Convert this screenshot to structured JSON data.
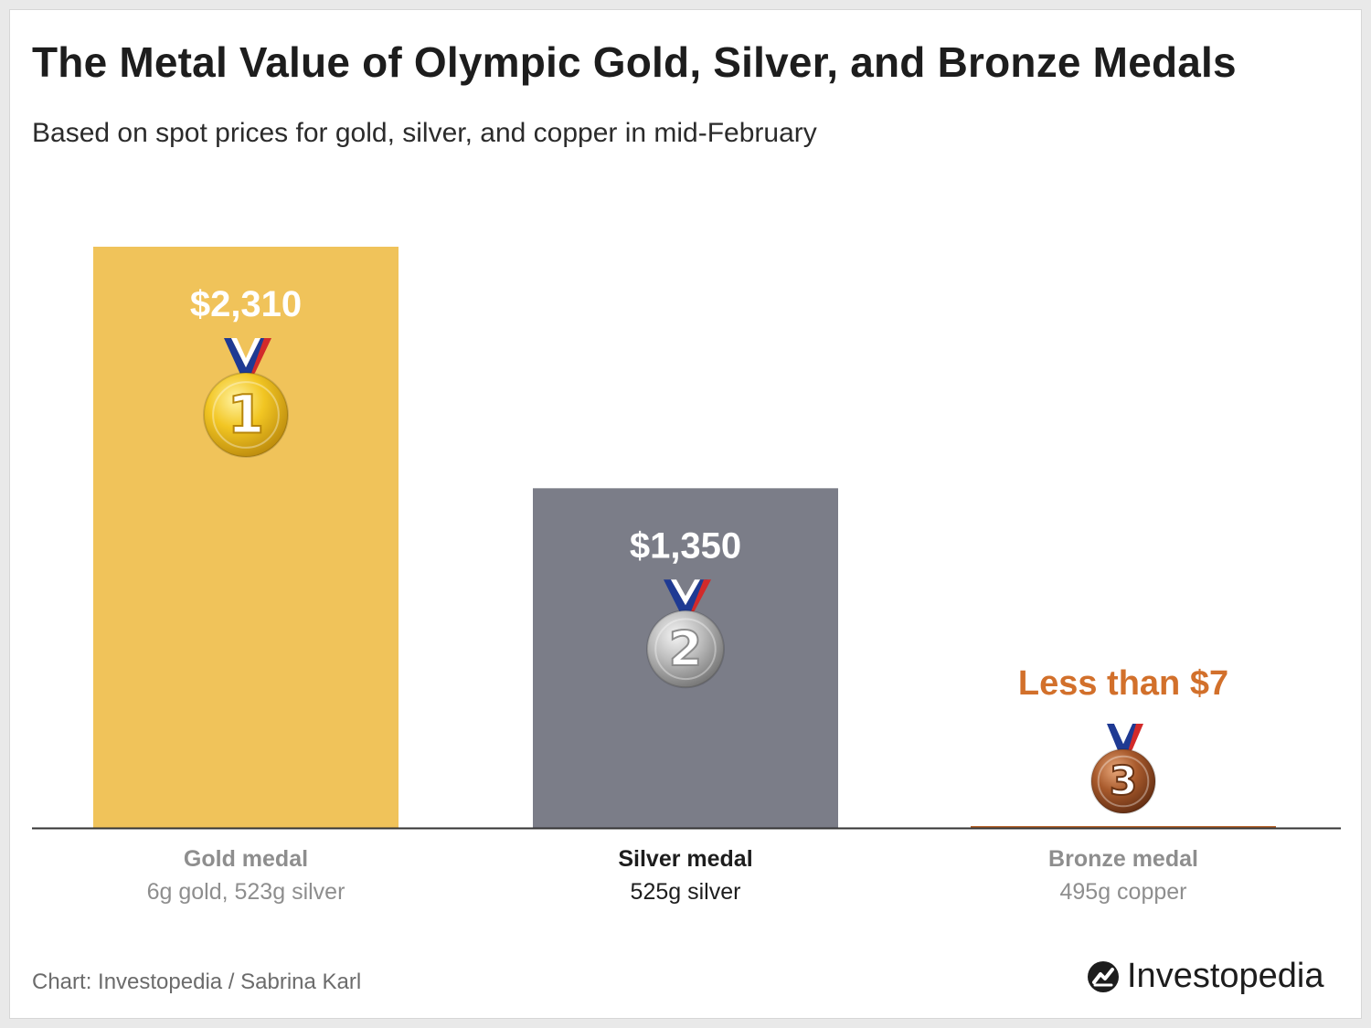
{
  "header": {
    "title": "The Metal Value of Olympic Gold, Silver, and Bronze Medals",
    "subtitle": "Based on spot prices for gold, silver, and copper in mid-February"
  },
  "footer": {
    "credit": "Chart: Investopedia / Sabrina Karl",
    "logo_text": "Investopedia"
  },
  "chart_data": {
    "type": "bar",
    "title": "The Metal Value of Olympic Gold, Silver, and Bronze Medals",
    "subtitle": "Based on spot prices for gold, silver, and copper in mid-February",
    "xlabel": "",
    "ylabel": "",
    "categories": [
      "Gold medal",
      "Silver medal",
      "Bronze medal"
    ],
    "category_sublabels": [
      "6g gold, 523g silver",
      "525g silver",
      "495g copper"
    ],
    "values": [
      2310,
      1350,
      7
    ],
    "data_labels": [
      "$2,310",
      "$1,350",
      "Less than $7"
    ],
    "medal_numbers": [
      "1",
      "2",
      "3"
    ],
    "ylim": [
      0,
      2310
    ],
    "grid": false,
    "colors": {
      "gold": "#f0c35a",
      "silver": "#7b7d88",
      "bronze": "#b7652e",
      "bronze_label": "#d2702b",
      "axis": "#333333",
      "muted_label": "#8e8e8e",
      "strong_label": "#1d1d1d"
    },
    "label_emphasis": [
      false,
      true,
      false
    ]
  }
}
